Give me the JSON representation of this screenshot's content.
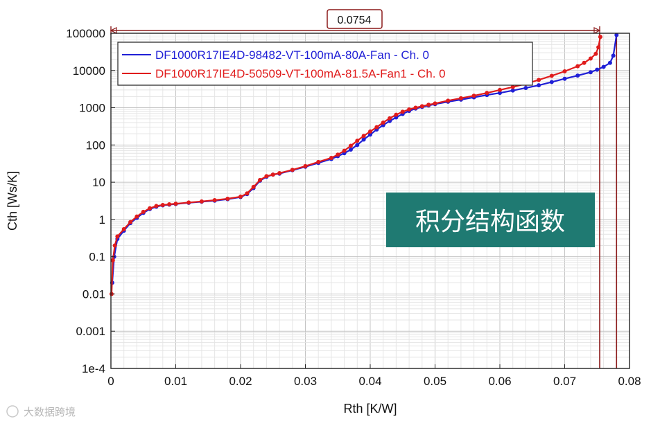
{
  "chart_data": {
    "type": "scatter",
    "title": "",
    "xlabel": "Rth  [K/W]",
    "ylabel": "Cth  [Ws/K]",
    "xlim": [
      0,
      0.08
    ],
    "ylim": [
      0.0001,
      100000
    ],
    "yscale": "log",
    "grid": true,
    "legend_position": "top-left",
    "x_ticks": [
      "0",
      "0.01",
      "0.02",
      "0.03",
      "0.04",
      "0.05",
      "0.06",
      "0.07",
      "0.08"
    ],
    "x_tick_values": [
      0,
      0.01,
      0.02,
      0.03,
      0.04,
      0.05,
      0.06,
      0.07,
      0.08
    ],
    "y_ticks": [
      "1e-4",
      "0.001",
      "0.01",
      "0.1",
      "1",
      "10",
      "100",
      "1000",
      "10000",
      "100000"
    ],
    "y_tick_values": [
      0.0001,
      0.001,
      0.01,
      0.1,
      1,
      10,
      100,
      1000,
      10000,
      100000
    ],
    "series": [
      {
        "name": "DF1000R17IE4D-98482-VT-100mA-80A-Fan - Ch. 0",
        "color": "#1f1fd6",
        "x": [
          0.0002,
          0.0005,
          0.001,
          0.002,
          0.003,
          0.004,
          0.005,
          0.006,
          0.007,
          0.008,
          0.009,
          0.01,
          0.012,
          0.014,
          0.016,
          0.018,
          0.02,
          0.021,
          0.022,
          0.023,
          0.024,
          0.025,
          0.026,
          0.028,
          0.03,
          0.032,
          0.034,
          0.035,
          0.036,
          0.037,
          0.038,
          0.039,
          0.04,
          0.041,
          0.042,
          0.043,
          0.044,
          0.045,
          0.046,
          0.047,
          0.048,
          0.049,
          0.05,
          0.052,
          0.054,
          0.056,
          0.058,
          0.06,
          0.062,
          0.064,
          0.066,
          0.068,
          0.07,
          0.072,
          0.074,
          0.075,
          0.076,
          0.077,
          0.0775,
          0.078
        ],
        "y": [
          0.02,
          0.1,
          0.3,
          0.5,
          0.8,
          1.1,
          1.5,
          1.9,
          2.2,
          2.4,
          2.5,
          2.6,
          2.8,
          3.0,
          3.2,
          3.5,
          4.0,
          4.8,
          7.0,
          11,
          14,
          16,
          17,
          21,
          26,
          33,
          42,
          50,
          60,
          75,
          100,
          140,
          190,
          260,
          340,
          440,
          550,
          680,
          820,
          950,
          1050,
          1150,
          1250,
          1450,
          1650,
          1900,
          2200,
          2500,
          2900,
          3400,
          4000,
          4900,
          6000,
          7300,
          9000,
          10500,
          12500,
          16000,
          25000,
          90000
        ]
      },
      {
        "name": "DF1000R17IE4D-50509-VT-100mA-81.5A-Fan1 - Ch. 0",
        "color": "#e01c1c",
        "x": [
          0.0001,
          0.0003,
          0.0006,
          0.001,
          0.002,
          0.003,
          0.004,
          0.005,
          0.006,
          0.007,
          0.008,
          0.009,
          0.01,
          0.012,
          0.014,
          0.016,
          0.018,
          0.02,
          0.021,
          0.022,
          0.023,
          0.024,
          0.025,
          0.026,
          0.028,
          0.03,
          0.032,
          0.034,
          0.035,
          0.036,
          0.037,
          0.038,
          0.039,
          0.04,
          0.041,
          0.042,
          0.043,
          0.044,
          0.045,
          0.046,
          0.047,
          0.048,
          0.049,
          0.05,
          0.052,
          0.054,
          0.056,
          0.058,
          0.06,
          0.062,
          0.064,
          0.066,
          0.068,
          0.07,
          0.072,
          0.073,
          0.074,
          0.0748,
          0.0752,
          0.0755
        ],
        "y": [
          0.01,
          0.08,
          0.2,
          0.35,
          0.55,
          0.85,
          1.2,
          1.6,
          2.0,
          2.3,
          2.45,
          2.55,
          2.65,
          2.85,
          3.05,
          3.3,
          3.6,
          4.1,
          5.0,
          7.5,
          11.5,
          14.5,
          16,
          17.5,
          21.5,
          27,
          35,
          45,
          55,
          70,
          95,
          130,
          175,
          230,
          300,
          400,
          520,
          650,
          780,
          900,
          1000,
          1100,
          1200,
          1300,
          1550,
          1800,
          2100,
          2500,
          3000,
          3600,
          4400,
          5600,
          7200,
          9500,
          13000,
          16000,
          21000,
          28000,
          42000,
          80000
        ]
      }
    ],
    "annotations": [
      {
        "label": "0.0754",
        "type": "span",
        "from": 0,
        "to": 0.0754
      },
      {
        "type": "vline",
        "x": 0.0754
      },
      {
        "type": "vline",
        "x": 0.078
      }
    ]
  },
  "overlay_label": "积分结构函数",
  "watermark": "大数据跨境"
}
